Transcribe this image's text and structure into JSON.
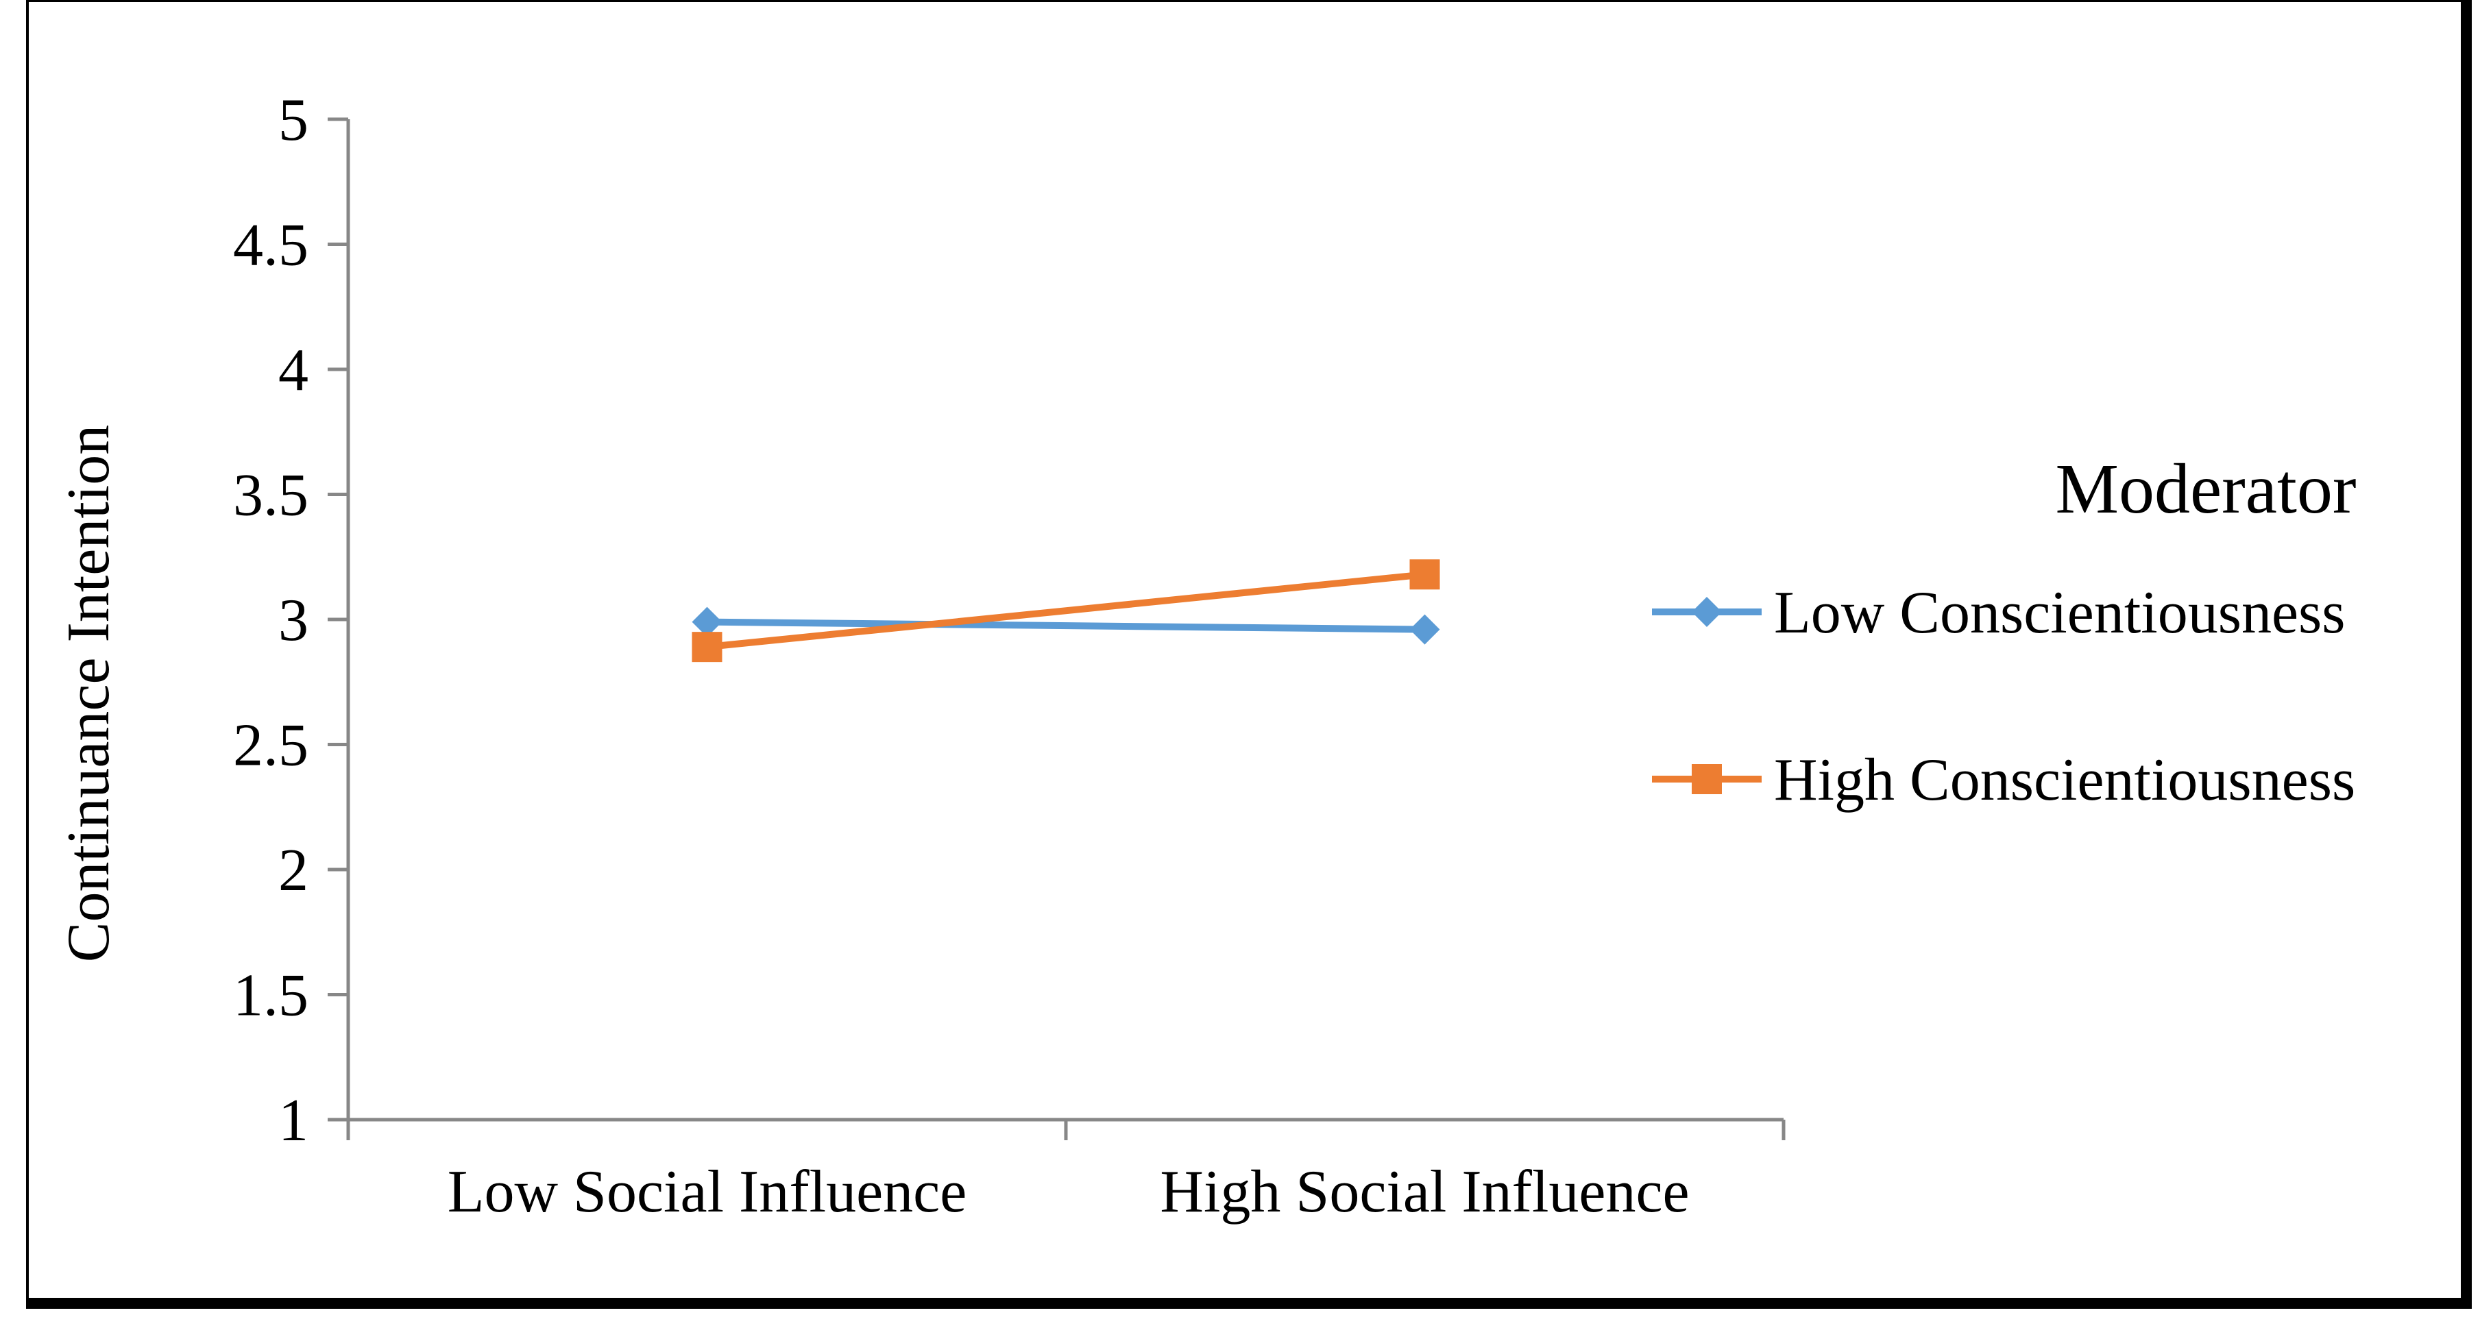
{
  "chart_data": {
    "type": "line",
    "title": "",
    "xlabel": "",
    "ylabel": "Continuance Intention",
    "ylim": [
      1,
      5
    ],
    "yticks": [
      "1",
      "1.5",
      "2",
      "2.5",
      "3",
      "3.5",
      "4",
      "4.5",
      "5"
    ],
    "ytick_values": [
      1,
      1.5,
      2,
      2.5,
      3,
      3.5,
      4,
      4.5,
      5
    ],
    "categories": [
      "Low Social Influence",
      "High Social Influence"
    ],
    "legend_title": "Moderator",
    "legend_position": "right",
    "series": [
      {
        "name": "Low Conscientiousness",
        "values": [
          2.99,
          2.96
        ],
        "color": "#5B9BD5",
        "marker": "diamond"
      },
      {
        "name": "High Conscientiousness",
        "values": [
          2.89,
          3.18
        ],
        "color": "#ED7D31",
        "marker": "square"
      }
    ]
  }
}
